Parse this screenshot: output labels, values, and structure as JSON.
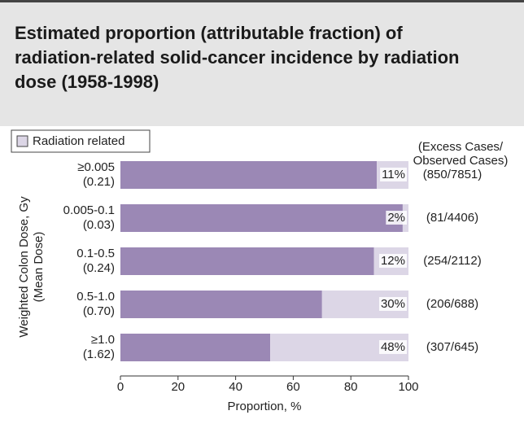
{
  "chart_data": {
    "type": "hbar_stacked",
    "title_lines": [
      "Estimated proportion (attributable fraction) of",
      "radiation-related solid-cancer incidence by radiation",
      "dose (1958-1998)"
    ],
    "categories": [
      "≥0.005",
      "0.005-0.1",
      "0.1-0.5",
      "0.5-1.0",
      "≥1.0"
    ],
    "mean_doses": [
      "(0.21)",
      "(0.03)",
      "(0.24)",
      "(0.70)",
      "(1.62)"
    ],
    "series": [
      {
        "color": "#9b88b5",
        "values": [
          89,
          98,
          88,
          70,
          52
        ]
      },
      {
        "name": "Radiation related",
        "color": "#dcd6e6",
        "values": [
          11,
          2,
          12,
          30,
          48
        ],
        "value_labels": [
          "11%",
          "2%",
          "12%",
          "30%",
          "48%"
        ]
      }
    ],
    "annotation_header": [
      "(Excess Cases/",
      "Observed Cases)"
    ],
    "annotations": [
      "(850/7851)",
      "(81/4406)",
      "(254/2112)",
      "(206/688)",
      "(307/645)"
    ],
    "ylabel_lines": [
      "Weighted Colon Dose, Gy",
      "(Mean Dose)"
    ],
    "xlabel": "Proportion, %",
    "xlim": [
      0,
      100
    ],
    "xticks": [
      0,
      20,
      40,
      60,
      80,
      100
    ]
  }
}
